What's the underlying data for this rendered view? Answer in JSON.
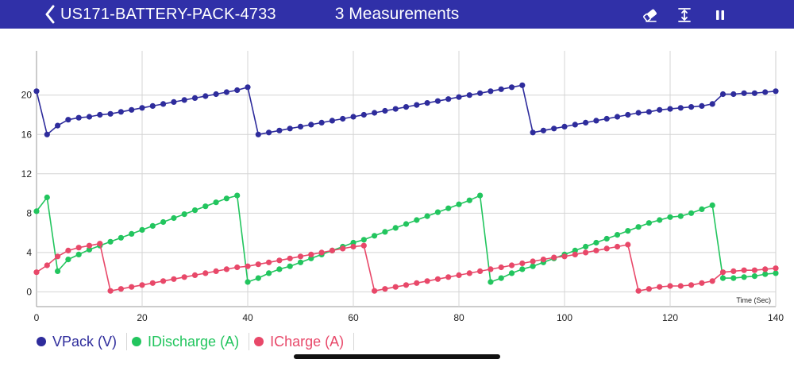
{
  "header": {
    "device_name": "US171-BATTERY-PACK-4733",
    "title": "3 Measurements",
    "bar_color": "#3030a8",
    "icons": [
      "back-chevron-icon",
      "eraser-icon",
      "fit-vertical-icon",
      "pause-icon"
    ]
  },
  "chart_data": {
    "type": "line",
    "xlabel": "Time (Sec)",
    "ylabel": "",
    "xlim": [
      0,
      140
    ],
    "ylim": [
      -1.5,
      24.5
    ],
    "xticks": [
      0,
      20,
      40,
      60,
      80,
      100,
      120,
      140
    ],
    "yticks": [
      0,
      4,
      8,
      12,
      16,
      20
    ],
    "grid": true,
    "legend_position": "bottom-left",
    "series": [
      {
        "name": "VPack (V)",
        "color": "#2e2c9c",
        "x": [
          0,
          2,
          4,
          6,
          8,
          10,
          12,
          14,
          16,
          18,
          20,
          22,
          24,
          26,
          28,
          30,
          32,
          34,
          36,
          38,
          40,
          42,
          44,
          46,
          48,
          50,
          52,
          54,
          56,
          58,
          60,
          62,
          64,
          66,
          68,
          70,
          72,
          74,
          76,
          78,
          80,
          82,
          84,
          86,
          88,
          90,
          92,
          94,
          96,
          98,
          100,
          102,
          104,
          106,
          108,
          110,
          112,
          114,
          116,
          118,
          120,
          122,
          124,
          126,
          128,
          130,
          132,
          134,
          136,
          138,
          140
        ],
        "y": [
          20.4,
          16.0,
          16.9,
          17.5,
          17.7,
          17.8,
          18.0,
          18.1,
          18.3,
          18.5,
          18.7,
          18.9,
          19.1,
          19.3,
          19.5,
          19.7,
          19.9,
          20.1,
          20.3,
          20.5,
          20.8,
          16.0,
          16.2,
          16.4,
          16.6,
          16.8,
          17.0,
          17.2,
          17.4,
          17.6,
          17.8,
          18.0,
          18.2,
          18.4,
          18.6,
          18.8,
          19.0,
          19.2,
          19.4,
          19.6,
          19.8,
          20.0,
          20.2,
          20.4,
          20.6,
          20.8,
          21.0,
          16.2,
          16.4,
          16.6,
          16.8,
          17.0,
          17.2,
          17.4,
          17.6,
          17.8,
          18.0,
          18.2,
          18.3,
          18.5,
          18.6,
          18.7,
          18.8,
          18.9,
          19.1,
          20.1,
          20.1,
          20.2,
          20.2,
          20.3,
          20.4
        ]
      },
      {
        "name": "IDischarge (A)",
        "color": "#22c55e",
        "x": [
          0,
          2,
          4,
          6,
          8,
          10,
          12,
          14,
          16,
          18,
          20,
          22,
          24,
          26,
          28,
          30,
          32,
          34,
          36,
          38,
          40,
          42,
          44,
          46,
          48,
          50,
          52,
          54,
          56,
          58,
          60,
          62,
          64,
          66,
          68,
          70,
          72,
          74,
          76,
          78,
          80,
          82,
          84,
          86,
          88,
          90,
          92,
          94,
          96,
          98,
          100,
          102,
          104,
          106,
          108,
          110,
          112,
          114,
          116,
          118,
          120,
          122,
          124,
          126,
          128,
          130,
          132,
          134,
          136,
          138,
          140
        ],
        "y": [
          8.2,
          9.6,
          2.1,
          3.3,
          3.8,
          4.3,
          4.7,
          5.1,
          5.5,
          5.9,
          6.3,
          6.7,
          7.1,
          7.5,
          7.9,
          8.3,
          8.7,
          9.1,
          9.5,
          9.8,
          1.0,
          1.4,
          1.9,
          2.3,
          2.6,
          3.0,
          3.4,
          3.8,
          4.2,
          4.6,
          5.0,
          5.3,
          5.7,
          6.1,
          6.5,
          6.9,
          7.3,
          7.7,
          8.1,
          8.5,
          8.9,
          9.3,
          9.8,
          1.0,
          1.4,
          1.9,
          2.3,
          2.6,
          3.0,
          3.4,
          3.8,
          4.2,
          4.6,
          5.0,
          5.4,
          5.8,
          6.2,
          6.6,
          7.0,
          7.3,
          7.6,
          7.7,
          8.0,
          8.4,
          8.8,
          1.4,
          1.4,
          1.5,
          1.6,
          1.8,
          1.9
        ]
      },
      {
        "name": "ICharge (A)",
        "color": "#e84869",
        "x": [
          0,
          2,
          4,
          6,
          8,
          10,
          12,
          14,
          16,
          18,
          20,
          22,
          24,
          26,
          28,
          30,
          32,
          34,
          36,
          38,
          40,
          42,
          44,
          46,
          48,
          50,
          52,
          54,
          56,
          58,
          60,
          62,
          64,
          66,
          68,
          70,
          72,
          74,
          76,
          78,
          80,
          82,
          84,
          86,
          88,
          90,
          92,
          94,
          96,
          98,
          100,
          102,
          104,
          106,
          108,
          110,
          112,
          114,
          116,
          118,
          120,
          122,
          124,
          126,
          128,
          130,
          132,
          134,
          136,
          138,
          140
        ],
        "y": [
          2.0,
          2.7,
          3.6,
          4.2,
          4.5,
          4.7,
          4.9,
          0.1,
          0.3,
          0.5,
          0.7,
          0.9,
          1.1,
          1.3,
          1.5,
          1.7,
          1.9,
          2.1,
          2.3,
          2.5,
          2.6,
          2.8,
          3.0,
          3.2,
          3.4,
          3.6,
          3.8,
          4.0,
          4.2,
          4.4,
          4.6,
          4.7,
          0.1,
          0.3,
          0.5,
          0.7,
          0.9,
          1.1,
          1.3,
          1.5,
          1.7,
          1.9,
          2.1,
          2.3,
          2.5,
          2.7,
          2.9,
          3.1,
          3.3,
          3.5,
          3.6,
          3.8,
          4.0,
          4.2,
          4.4,
          4.6,
          4.8,
          0.1,
          0.3,
          0.5,
          0.6,
          0.6,
          0.7,
          0.9,
          1.1,
          2.0,
          2.1,
          2.2,
          2.2,
          2.3,
          2.4
        ]
      }
    ]
  }
}
